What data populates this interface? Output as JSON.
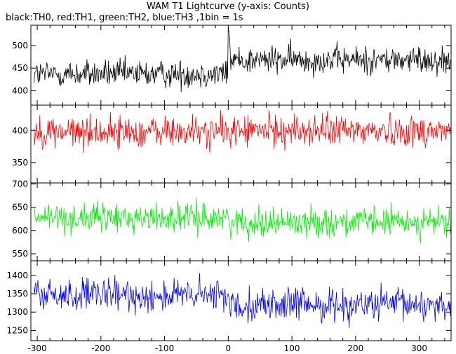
{
  "chart_data": {
    "type": "line",
    "title": "WAM T1 Lightcurve (y-axis: Counts)",
    "subtitle": "black:TH0, red:TH1, green:TH2, blue:TH3 ,1bin = 1s",
    "xlim": [
      -310,
      350
    ],
    "xticks": [
      -300,
      -200,
      -100,
      0,
      100,
      200,
      300
    ],
    "grid": false,
    "panels": [
      {
        "name": "TH0",
        "color": "#000000",
        "ylim": [
          368,
          545
        ],
        "yticks": [
          400,
          450,
          500
        ],
        "baseline_pre": 437,
        "baseline_post": 468,
        "noise": 22,
        "spike_x": 0,
        "spike_y": 540
      },
      {
        "name": "TH1",
        "color": "#ff0000",
        "ylim": [
          318,
          440
        ],
        "yticks": [
          350,
          400
        ],
        "baseline_pre": 398,
        "baseline_post": 400,
        "noise": 18,
        "spike_x": 0,
        "spike_y": 405
      },
      {
        "name": "TH2",
        "color": "#00ee00",
        "ylim": [
          535,
          702
        ],
        "yticks": [
          550,
          600,
          650,
          700
        ],
        "baseline_pre": 627,
        "baseline_post": 618,
        "noise": 22,
        "spike_x": 0,
        "spike_y": 630
      },
      {
        "name": "TH3",
        "color": "#0000ff",
        "ylim": [
          1222,
          1440
        ],
        "yticks": [
          1250,
          1300,
          1350,
          1400
        ],
        "baseline_pre": 1345,
        "baseline_post": 1320,
        "noise": 32,
        "spike_x": 0,
        "spike_y": 1350
      }
    ]
  }
}
